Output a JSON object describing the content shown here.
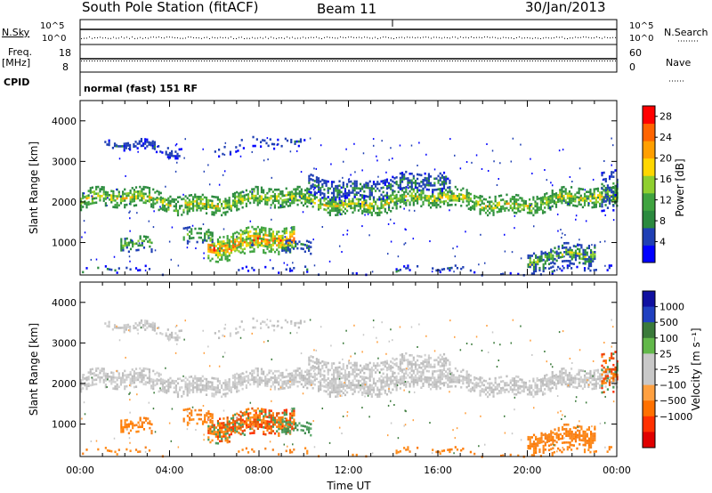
{
  "header": {
    "station": "South Pole Station (fitACF)",
    "beam": "Beam 11",
    "date": "30/Jan/2013"
  },
  "strip_panels": {
    "nsky_label": "N.Sky",
    "nsky_ticks": [
      "10^5",
      "10^0"
    ],
    "nsearch_label": "N.Search",
    "nsearch_ticks": [
      "10^5",
      "10^0"
    ],
    "freq_label": "Freq.",
    "freq_unit": "[MHz]",
    "freq_ticks": [
      "18",
      "8"
    ],
    "nave_label": "Nave",
    "nave_ticks": [
      "60",
      "0"
    ],
    "cpid_label": "CPID",
    "cpid_value": "normal (fast) 151 RF"
  },
  "colors": {
    "power": [
      "#0000ff",
      "#1f3fb4",
      "#2b8a3e",
      "#3fa33f",
      "#8fcf2f",
      "#ffd700",
      "#ff9f00",
      "#ff6400",
      "#ff0000"
    ],
    "velocity_scale": [
      "#1010a0",
      "#2040c0",
      "#3a7a3a",
      "#62b84a",
      "#c8c8c8",
      "#c8c8c8",
      "#ffa040",
      "#ff7000",
      "#ff3000",
      "#e00000"
    ]
  },
  "chart_data": [
    {
      "type": "heatmap",
      "title": "Power",
      "ylabel": "Slant Range [km]",
      "xlabel": "",
      "x_ticks": [
        "00:00",
        "04:00",
        "08:00",
        "12:00",
        "16:00",
        "20:00",
        "00:00"
      ],
      "y_ticks": [
        1000,
        2000,
        3000,
        4000
      ],
      "ylim": [
        200,
        4500
      ],
      "xlim_hours": [
        0,
        24
      ],
      "colorbar_label": "Power [dB]",
      "colorbar_ticks": [
        4,
        8,
        12,
        16,
        20,
        24,
        28
      ],
      "colorbar_range": [
        0,
        30
      ]
    },
    {
      "type": "heatmap",
      "title": "Velocity",
      "ylabel": "Slant Range [km]",
      "xlabel": "Time UT",
      "x_ticks": [
        "00:00",
        "04:00",
        "08:00",
        "12:00",
        "16:00",
        "20:00",
        "00:00"
      ],
      "y_ticks": [
        1000,
        2000,
        3000,
        4000
      ],
      "ylim": [
        200,
        4500
      ],
      "xlim_hours": [
        0,
        24
      ],
      "colorbar_label": "Velocity [m s⁻¹]",
      "colorbar_ticks": [
        "1000",
        "500",
        "100",
        "25",
        "−25",
        "−100",
        "−500",
        "−1000"
      ]
    }
  ]
}
